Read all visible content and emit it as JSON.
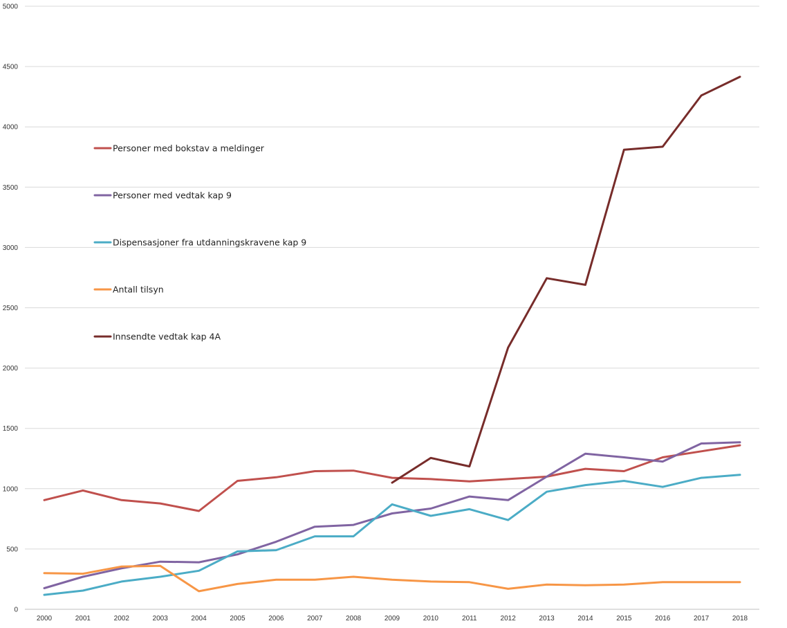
{
  "chart_data": {
    "type": "line",
    "title": "",
    "xlabel": "",
    "ylabel": "",
    "ylim": [
      0,
      5000
    ],
    "yticks": [
      0,
      500,
      1000,
      1500,
      2000,
      2500,
      3000,
      3500,
      4000,
      4500,
      5000
    ],
    "categories": [
      "2000",
      "2001",
      "2002",
      "2003",
      "2004",
      "2005",
      "2006",
      "2007",
      "2008",
      "2009",
      "2010",
      "2011",
      "2012",
      "2013",
      "2014",
      "2015",
      "2016",
      "2017",
      "2018"
    ],
    "grid": true,
    "legend_position": "left",
    "series": [
      {
        "name": "Personer med bokstav a meldinger",
        "color": "#c0504d",
        "values": [
          905,
          985,
          905,
          878,
          815,
          1065,
          1095,
          1145,
          1150,
          1090,
          1080,
          1060,
          1080,
          1100,
          1165,
          1145,
          1260,
          1310,
          1360
        ]
      },
      {
        "name": "Personer med vedtak kap 9",
        "color": "#8064a2",
        "values": [
          175,
          270,
          340,
          395,
          390,
          455,
          560,
          685,
          700,
          795,
          835,
          935,
          905,
          1100,
          1290,
          1260,
          1225,
          1375,
          1385
        ]
      },
      {
        "name": "Dispensasjoner fra utdanningskravene kap 9",
        "color": "#4bacc6",
        "values": [
          120,
          155,
          230,
          270,
          320,
          480,
          490,
          605,
          605,
          870,
          775,
          830,
          740,
          975,
          1030,
          1065,
          1015,
          1090,
          1115
        ]
      },
      {
        "name": "Antall tilsyn",
        "color": "#f79646",
        "values": [
          300,
          295,
          355,
          360,
          150,
          210,
          245,
          245,
          270,
          245,
          230,
          225,
          170,
          205,
          200,
          205,
          225,
          225,
          225
        ]
      },
      {
        "name": "Innsendte vedtak kap 4A",
        "color": "#772c2a",
        "values": [
          null,
          null,
          null,
          null,
          null,
          null,
          null,
          null,
          null,
          1050,
          1255,
          1185,
          2170,
          2745,
          2690,
          3810,
          3835,
          4260,
          4415
        ]
      }
    ]
  }
}
